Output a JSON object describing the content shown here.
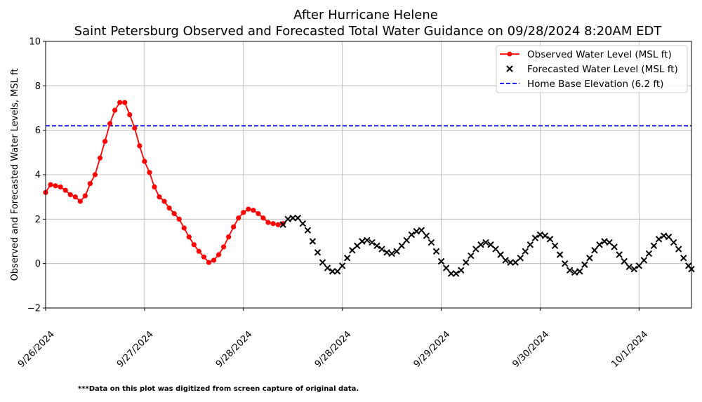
{
  "chart_data": {
    "type": "line",
    "title": "After Hurricane Helene",
    "subtitle": "Saint Petersburg Observed and Forecasted Total Water Guidance on 09/28/2024 8:20AM EDT",
    "xlabel": "",
    "ylabel": "Observed and Forecasted Water Levels, MSL ft",
    "ylim": [
      -2,
      10
    ],
    "y_ticks": [
      -2,
      0,
      2,
      4,
      6,
      8,
      10
    ],
    "y_tick_labels": [
      "−2",
      "0",
      "2",
      "4",
      "6",
      "8",
      "10"
    ],
    "x_unit": "days from 9/26/2024 00:00",
    "xlim": [
      0,
      6.53
    ],
    "x_ticks": [
      0,
      1,
      2,
      3,
      4,
      5,
      6
    ],
    "x_tick_labels": [
      "9/26/2024",
      "9/27/2024",
      "9/28/2024",
      "9/28/2024",
      "9/29/2024",
      "9/30/2024",
      "10/1/2024"
    ],
    "grid": true,
    "legend_position": "top-right",
    "series": [
      {
        "name": "Observed Water Level (MSL ft)",
        "style": "line-circle",
        "color": "#ff0000",
        "x": [
          0.0,
          0.05,
          0.1,
          0.15,
          0.2,
          0.25,
          0.3,
          0.35,
          0.4,
          0.45,
          0.5,
          0.55,
          0.6,
          0.65,
          0.7,
          0.75,
          0.8,
          0.85,
          0.9,
          0.95,
          1.0,
          1.05,
          1.1,
          1.15,
          1.2,
          1.25,
          1.3,
          1.35,
          1.4,
          1.45,
          1.5,
          1.55,
          1.6,
          1.65,
          1.7,
          1.75,
          1.8,
          1.85,
          1.9,
          1.95,
          2.0,
          2.05,
          2.1,
          2.15,
          2.2,
          2.25,
          2.3,
          2.35,
          2.4
        ],
        "values": [
          3.2,
          3.55,
          3.5,
          3.45,
          3.3,
          3.1,
          3.0,
          2.8,
          3.05,
          3.6,
          4.0,
          4.75,
          5.5,
          6.3,
          6.9,
          7.25,
          7.25,
          6.7,
          6.1,
          5.3,
          4.6,
          4.1,
          3.45,
          3.0,
          2.8,
          2.5,
          2.25,
          2.0,
          1.6,
          1.2,
          0.85,
          0.55,
          0.3,
          0.05,
          0.15,
          0.4,
          0.75,
          1.2,
          1.65,
          2.05,
          2.3,
          2.45,
          2.4,
          2.25,
          2.05,
          1.85,
          1.8,
          1.75,
          1.8
        ]
      },
      {
        "name": "Forecasted Water Level (MSL ft)",
        "style": "x-marker",
        "color": "#000000",
        "x": [
          2.4,
          2.45,
          2.5,
          2.55,
          2.6,
          2.65,
          2.7,
          2.75,
          2.8,
          2.85,
          2.9,
          2.95,
          3.0,
          3.05,
          3.1,
          3.15,
          3.2,
          3.25,
          3.3,
          3.35,
          3.4,
          3.45,
          3.5,
          3.55,
          3.6,
          3.65,
          3.7,
          3.75,
          3.8,
          3.85,
          3.9,
          3.95,
          4.0,
          4.05,
          4.1,
          4.15,
          4.2,
          4.25,
          4.3,
          4.35,
          4.4,
          4.45,
          4.5,
          4.55,
          4.6,
          4.65,
          4.7,
          4.75,
          4.8,
          4.85,
          4.9,
          4.95,
          5.0,
          5.05,
          5.1,
          5.15,
          5.2,
          5.25,
          5.3,
          5.35,
          5.4,
          5.45,
          5.5,
          5.55,
          5.6,
          5.65,
          5.7,
          5.75,
          5.8,
          5.85,
          5.9,
          5.95,
          6.0,
          6.05,
          6.1,
          6.15,
          6.2,
          6.25,
          6.3,
          6.35,
          6.4,
          6.45,
          6.5,
          6.53
        ],
        "values": [
          1.75,
          2.0,
          2.05,
          2.05,
          1.8,
          1.5,
          1.0,
          0.5,
          0.05,
          -0.2,
          -0.35,
          -0.35,
          -0.1,
          0.25,
          0.6,
          0.8,
          1.0,
          1.05,
          0.95,
          0.8,
          0.65,
          0.5,
          0.45,
          0.55,
          0.8,
          1.05,
          1.3,
          1.45,
          1.5,
          1.25,
          0.95,
          0.55,
          0.1,
          -0.2,
          -0.45,
          -0.45,
          -0.3,
          0.05,
          0.35,
          0.65,
          0.85,
          0.95,
          0.85,
          0.65,
          0.4,
          0.15,
          0.05,
          0.05,
          0.25,
          0.55,
          0.85,
          1.15,
          1.3,
          1.25,
          1.1,
          0.8,
          0.4,
          0.0,
          -0.3,
          -0.4,
          -0.35,
          -0.05,
          0.25,
          0.6,
          0.85,
          1.0,
          0.95,
          0.75,
          0.4,
          0.1,
          -0.15,
          -0.25,
          -0.1,
          0.15,
          0.45,
          0.8,
          1.1,
          1.25,
          1.2,
          0.95,
          0.65,
          0.25,
          -0.1,
          -0.25
        ]
      },
      {
        "name": "Home Base Elevation (6.2 ft)",
        "style": "dashed-line",
        "color": "#0000ff",
        "value": 6.2
      }
    ]
  },
  "footnote": "***Data on this plot was digitized from screen capture of original data."
}
